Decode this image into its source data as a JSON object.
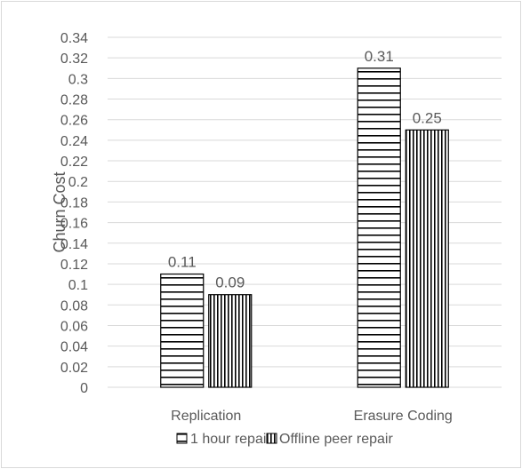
{
  "chart_data": {
    "type": "bar",
    "title": "",
    "xlabel": "",
    "ylabel": "Churn Cost",
    "ylim": [
      0,
      0.34
    ],
    "ytick_step": 0.02,
    "yticks": [
      "0",
      "0.02",
      "0.04",
      "0.06",
      "0.08",
      "0.1",
      "0.12",
      "0.14",
      "0.16",
      "0.18",
      "0.2",
      "0.22",
      "0.24",
      "0.26",
      "0.28",
      "0.3",
      "0.32",
      "0.34"
    ],
    "grid": true,
    "legend_position": "bottom",
    "categories": [
      "Replication",
      "Erasure Coding"
    ],
    "series": [
      {
        "name": "1 hour repair",
        "values": [
          0.11,
          0.31
        ],
        "labels": [
          "0.11",
          "0.31"
        ],
        "pattern": "horizontal-stripes"
      },
      {
        "name": "Offline peer repair",
        "values": [
          0.09,
          0.25
        ],
        "labels": [
          "0.09",
          "0.25"
        ],
        "pattern": "vertical-stripes"
      }
    ],
    "colors": {
      "stripe": "#000000",
      "grid": "#d9d9d9",
      "text": "#595959",
      "border": "#d9d9d9"
    }
  }
}
